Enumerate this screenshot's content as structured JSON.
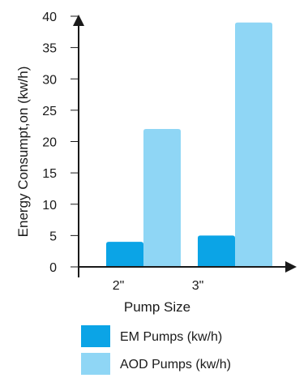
{
  "chart_data": {
    "type": "bar",
    "categories": [
      "2\"",
      "3\""
    ],
    "series": [
      {
        "name": "EM Pumps (kw/h)",
        "values": [
          4,
          5
        ],
        "color": "#0ba4e6"
      },
      {
        "name": "AOD Pumps (kw/h)",
        "values": [
          22,
          39
        ],
        "color": "#8fd6f5"
      }
    ],
    "xlabel": "Pump Size",
    "ylabel": "Energy Consumpt,on (kw/h)",
    "ylim": [
      0,
      40
    ],
    "yticks": [
      0,
      5,
      10,
      15,
      20,
      25,
      30,
      35,
      40
    ],
    "grid": false,
    "legend_position": "bottom"
  }
}
